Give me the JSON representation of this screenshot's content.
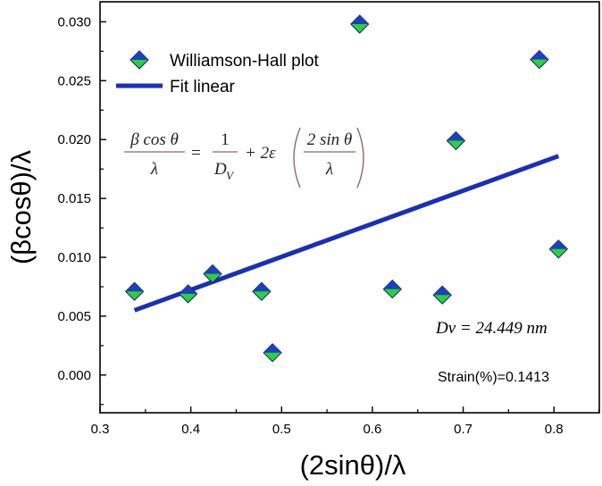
{
  "chart_data": {
    "type": "scatter",
    "xlabel": "(2sinθ)/λ",
    "ylabel": "(βcosθ)/λ",
    "xlim": [
      0.3,
      0.85
    ],
    "ylim": [
      -0.0032,
      0.0317
    ],
    "x_ticks": [
      "0.3",
      "0.4",
      "0.5",
      "0.6",
      "0.7",
      "0.8"
    ],
    "y_ticks": [
      "0.000",
      "0.005",
      "0.010",
      "0.015",
      "0.020",
      "0.025",
      "0.030"
    ],
    "series": [
      {
        "name": "Williamson-Hall plot",
        "kind": "scatter",
        "marker": "diamond",
        "color_top": "#1f3fbf",
        "color_bottom": "#2bd13a",
        "x": [
          0.338,
          0.397,
          0.424,
          0.478,
          0.49,
          0.586,
          0.622,
          0.677,
          0.692,
          0.784,
          0.805
        ],
        "y": [
          0.0071,
          0.0069,
          0.0086,
          0.0071,
          0.0019,
          0.0298,
          0.0073,
          0.0068,
          0.0199,
          0.0268,
          0.0107
        ]
      },
      {
        "name": "Fit linear",
        "kind": "line",
        "color": "#1a2fb5",
        "x": [
          0.338,
          0.805
        ],
        "y": [
          0.0055,
          0.0186
        ]
      }
    ],
    "legend_position": "top-left",
    "equation": {
      "frac1_top": "β cos θ",
      "frac1_bottom": "λ",
      "equals": "=",
      "frac2_top": "1",
      "frac2_bottom": "D",
      "frac2_sub": "V",
      "plus": "+ 2ε",
      "frac3_top": "2 sin θ",
      "frac3_bottom": "λ"
    },
    "annotations": {
      "dv": "Dv = 24.449 nm",
      "strain": "Strain(%)=0.1413"
    }
  }
}
